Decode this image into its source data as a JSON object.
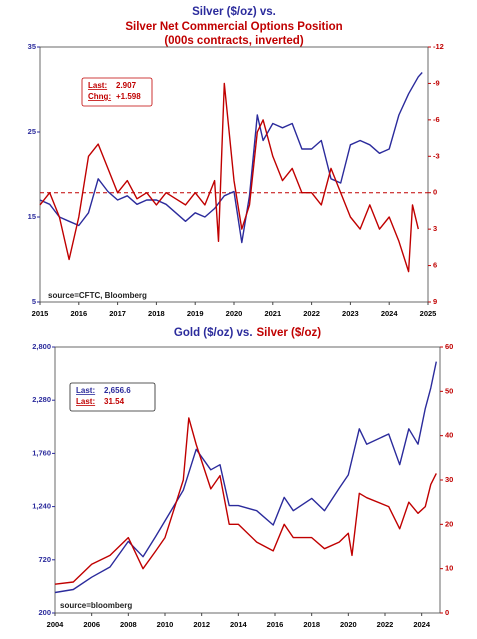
{
  "chart_data": [
    {
      "type": "line",
      "title_lines": [
        [
          {
            "text": "Silver ($/oz) vs.",
            "color": "#2b2b9c"
          }
        ],
        [
          {
            "text": "Silver Net Commercial Options Position",
            "color": "#c00000"
          }
        ],
        [
          {
            "text": "(000s contracts, inverted)",
            "color": "#c00000"
          }
        ]
      ],
      "xlim": [
        2015,
        2025
      ],
      "xticks": [
        2015,
        2016,
        2017,
        2018,
        2019,
        2020,
        2021,
        2022,
        2023,
        2024,
        2025
      ],
      "ylim": [
        5,
        35
      ],
      "yticks": [
        5,
        15,
        25,
        35
      ],
      "y_color": "#2b2b9c",
      "y2lim": [
        -12,
        9
      ],
      "y2ticks": [
        -12,
        -9,
        -6,
        -3,
        0,
        3,
        6,
        9
      ],
      "y2_inverted": true,
      "y2_color": "#c00000",
      "reference_line": {
        "axis": "y2",
        "value": 0,
        "color": "#c00000"
      },
      "source": "source=CFTC, Bloomberg",
      "annotation": {
        "border": "#c00000",
        "lines": [
          {
            "label": "Last:",
            "value": 2.907,
            "color": "#c00000"
          },
          {
            "label": "Chng:",
            "value": "+1.598",
            "color": "#c00000"
          }
        ]
      },
      "series": [
        {
          "name": "Silver ($/oz)",
          "color": "#2b2b9c",
          "x": [
            2015.0,
            2015.25,
            2015.5,
            2015.75,
            2016.0,
            2016.25,
            2016.5,
            2016.75,
            2017.0,
            2017.25,
            2017.5,
            2017.75,
            2018.0,
            2018.25,
            2018.5,
            2018.75,
            2019.0,
            2019.25,
            2019.5,
            2019.75,
            2020.0,
            2020.2,
            2020.4,
            2020.6,
            2020.75,
            2021.0,
            2021.25,
            2021.5,
            2021.75,
            2022.0,
            2022.25,
            2022.5,
            2022.75,
            2023.0,
            2023.25,
            2023.5,
            2023.75,
            2024.0,
            2024.25,
            2024.5,
            2024.75,
            2024.85
          ],
          "values": [
            17,
            16.5,
            15,
            14.5,
            14,
            15.5,
            19.5,
            18,
            17,
            17.5,
            16.5,
            17,
            17,
            16.5,
            15.5,
            14.5,
            15.5,
            15,
            16,
            17.5,
            18,
            12,
            17.5,
            27,
            24,
            26,
            25.5,
            26,
            23,
            23,
            24,
            19.5,
            19,
            23.5,
            24,
            23.5,
            22.5,
            23,
            27,
            29.5,
            31.5,
            32
          ]
        },
        {
          "name": "Silver Net Commercial Options Position",
          "color": "#c00000",
          "axis": "y2",
          "x": [
            2015.0,
            2015.25,
            2015.5,
            2015.75,
            2016.0,
            2016.25,
            2016.5,
            2016.75,
            2017.0,
            2017.25,
            2017.5,
            2017.75,
            2018.0,
            2018.25,
            2018.5,
            2018.75,
            2019.0,
            2019.25,
            2019.5,
            2019.6,
            2019.75,
            2020.0,
            2020.2,
            2020.4,
            2020.6,
            2020.75,
            2021.0,
            2021.25,
            2021.5,
            2021.75,
            2022.0,
            2022.25,
            2022.5,
            2022.75,
            2023.0,
            2023.25,
            2023.5,
            2023.75,
            2024.0,
            2024.25,
            2024.5,
            2024.6,
            2024.75
          ],
          "values": [
            1,
            0,
            2,
            5.5,
            2,
            -3,
            -4,
            -2,
            0,
            -1,
            0.5,
            0,
            1,
            0,
            0.5,
            1,
            0,
            1,
            -1,
            4,
            -9,
            -1,
            3,
            1,
            -5,
            -6,
            -3,
            -1,
            -2,
            0,
            0,
            1,
            -2,
            0,
            2,
            3,
            1,
            3,
            2,
            4,
            6.5,
            1,
            3
          ]
        }
      ]
    },
    {
      "type": "line",
      "title_lines": [
        [
          {
            "text": "Gold ($/oz) vs.",
            "color": "#2b2b9c"
          },
          {
            "text": "Silver ($/oz)",
            "color": "#c00000"
          }
        ]
      ],
      "xlim": [
        2004,
        2025
      ],
      "xticks": [
        2004,
        2006,
        2008,
        2010,
        2012,
        2014,
        2016,
        2018,
        2020,
        2022,
        2024
      ],
      "ylim": [
        200,
        2800
      ],
      "yticks": [
        200,
        {
          "value": 720,
          "label": "720"
        },
        {
          "value": 1240,
          "label": "1,240"
        },
        {
          "value": 1760,
          "label": "1,760"
        },
        {
          "value": 2280,
          "label": "2,280"
        },
        {
          "value": 2800,
          "label": "2,800"
        }
      ],
      "y_color": "#2b2b9c",
      "y2lim": [
        0,
        60
      ],
      "y2ticks": [
        0,
        10,
        20,
        30,
        40,
        50,
        60
      ],
      "y2_inverted": false,
      "y2_color": "#c00000",
      "source": "source=bloomberg",
      "annotation": {
        "border": "#222222",
        "lines": [
          {
            "label": "Last:",
            "value": "2,656.6",
            "color": "#2b2b9c"
          },
          {
            "label": "Last:",
            "value": 31.54,
            "color": "#c00000"
          }
        ]
      },
      "series": [
        {
          "name": "Gold ($/oz)",
          "color": "#2b2b9c",
          "x": [
            2004,
            2005,
            2006,
            2007,
            2008,
            2008.8,
            2009.5,
            2010,
            2011,
            2011.7,
            2012.5,
            2013,
            2013.5,
            2014,
            2015,
            2015.9,
            2016.5,
            2017,
            2018,
            2018.7,
            2019.5,
            2020,
            2020.6,
            2021,
            2022.2,
            2022.8,
            2023.3,
            2023.8,
            2024.2,
            2024.5,
            2024.8
          ],
          "values": [
            400,
            430,
            550,
            650,
            900,
            750,
            950,
            1100,
            1400,
            1800,
            1600,
            1650,
            1250,
            1250,
            1200,
            1060,
            1330,
            1200,
            1320,
            1200,
            1420,
            1550,
            2000,
            1850,
            1950,
            1650,
            2000,
            1850,
            2200,
            2400,
            2657
          ]
        },
        {
          "name": "Silver ($/oz)",
          "color": "#c00000",
          "axis": "y2",
          "x": [
            2004,
            2005,
            2006,
            2007,
            2008,
            2008.8,
            2009.5,
            2010,
            2011,
            2011.3,
            2011.7,
            2012.5,
            2013,
            2013.5,
            2014,
            2015,
            2015.9,
            2016.5,
            2017,
            2018,
            2018.7,
            2019.5,
            2020,
            2020.2,
            2020.6,
            2021,
            2022.2,
            2022.8,
            2023.3,
            2023.8,
            2024.2,
            2024.5,
            2024.8
          ],
          "values": [
            6.5,
            7,
            11,
            13,
            17,
            10,
            14,
            17,
            30,
            44,
            38,
            28,
            31,
            20,
            20,
            16,
            14,
            20,
            17,
            17,
            14.5,
            16,
            18,
            13,
            27,
            26,
            24,
            19,
            25,
            22.5,
            24,
            29,
            31.5
          ]
        }
      ]
    }
  ]
}
